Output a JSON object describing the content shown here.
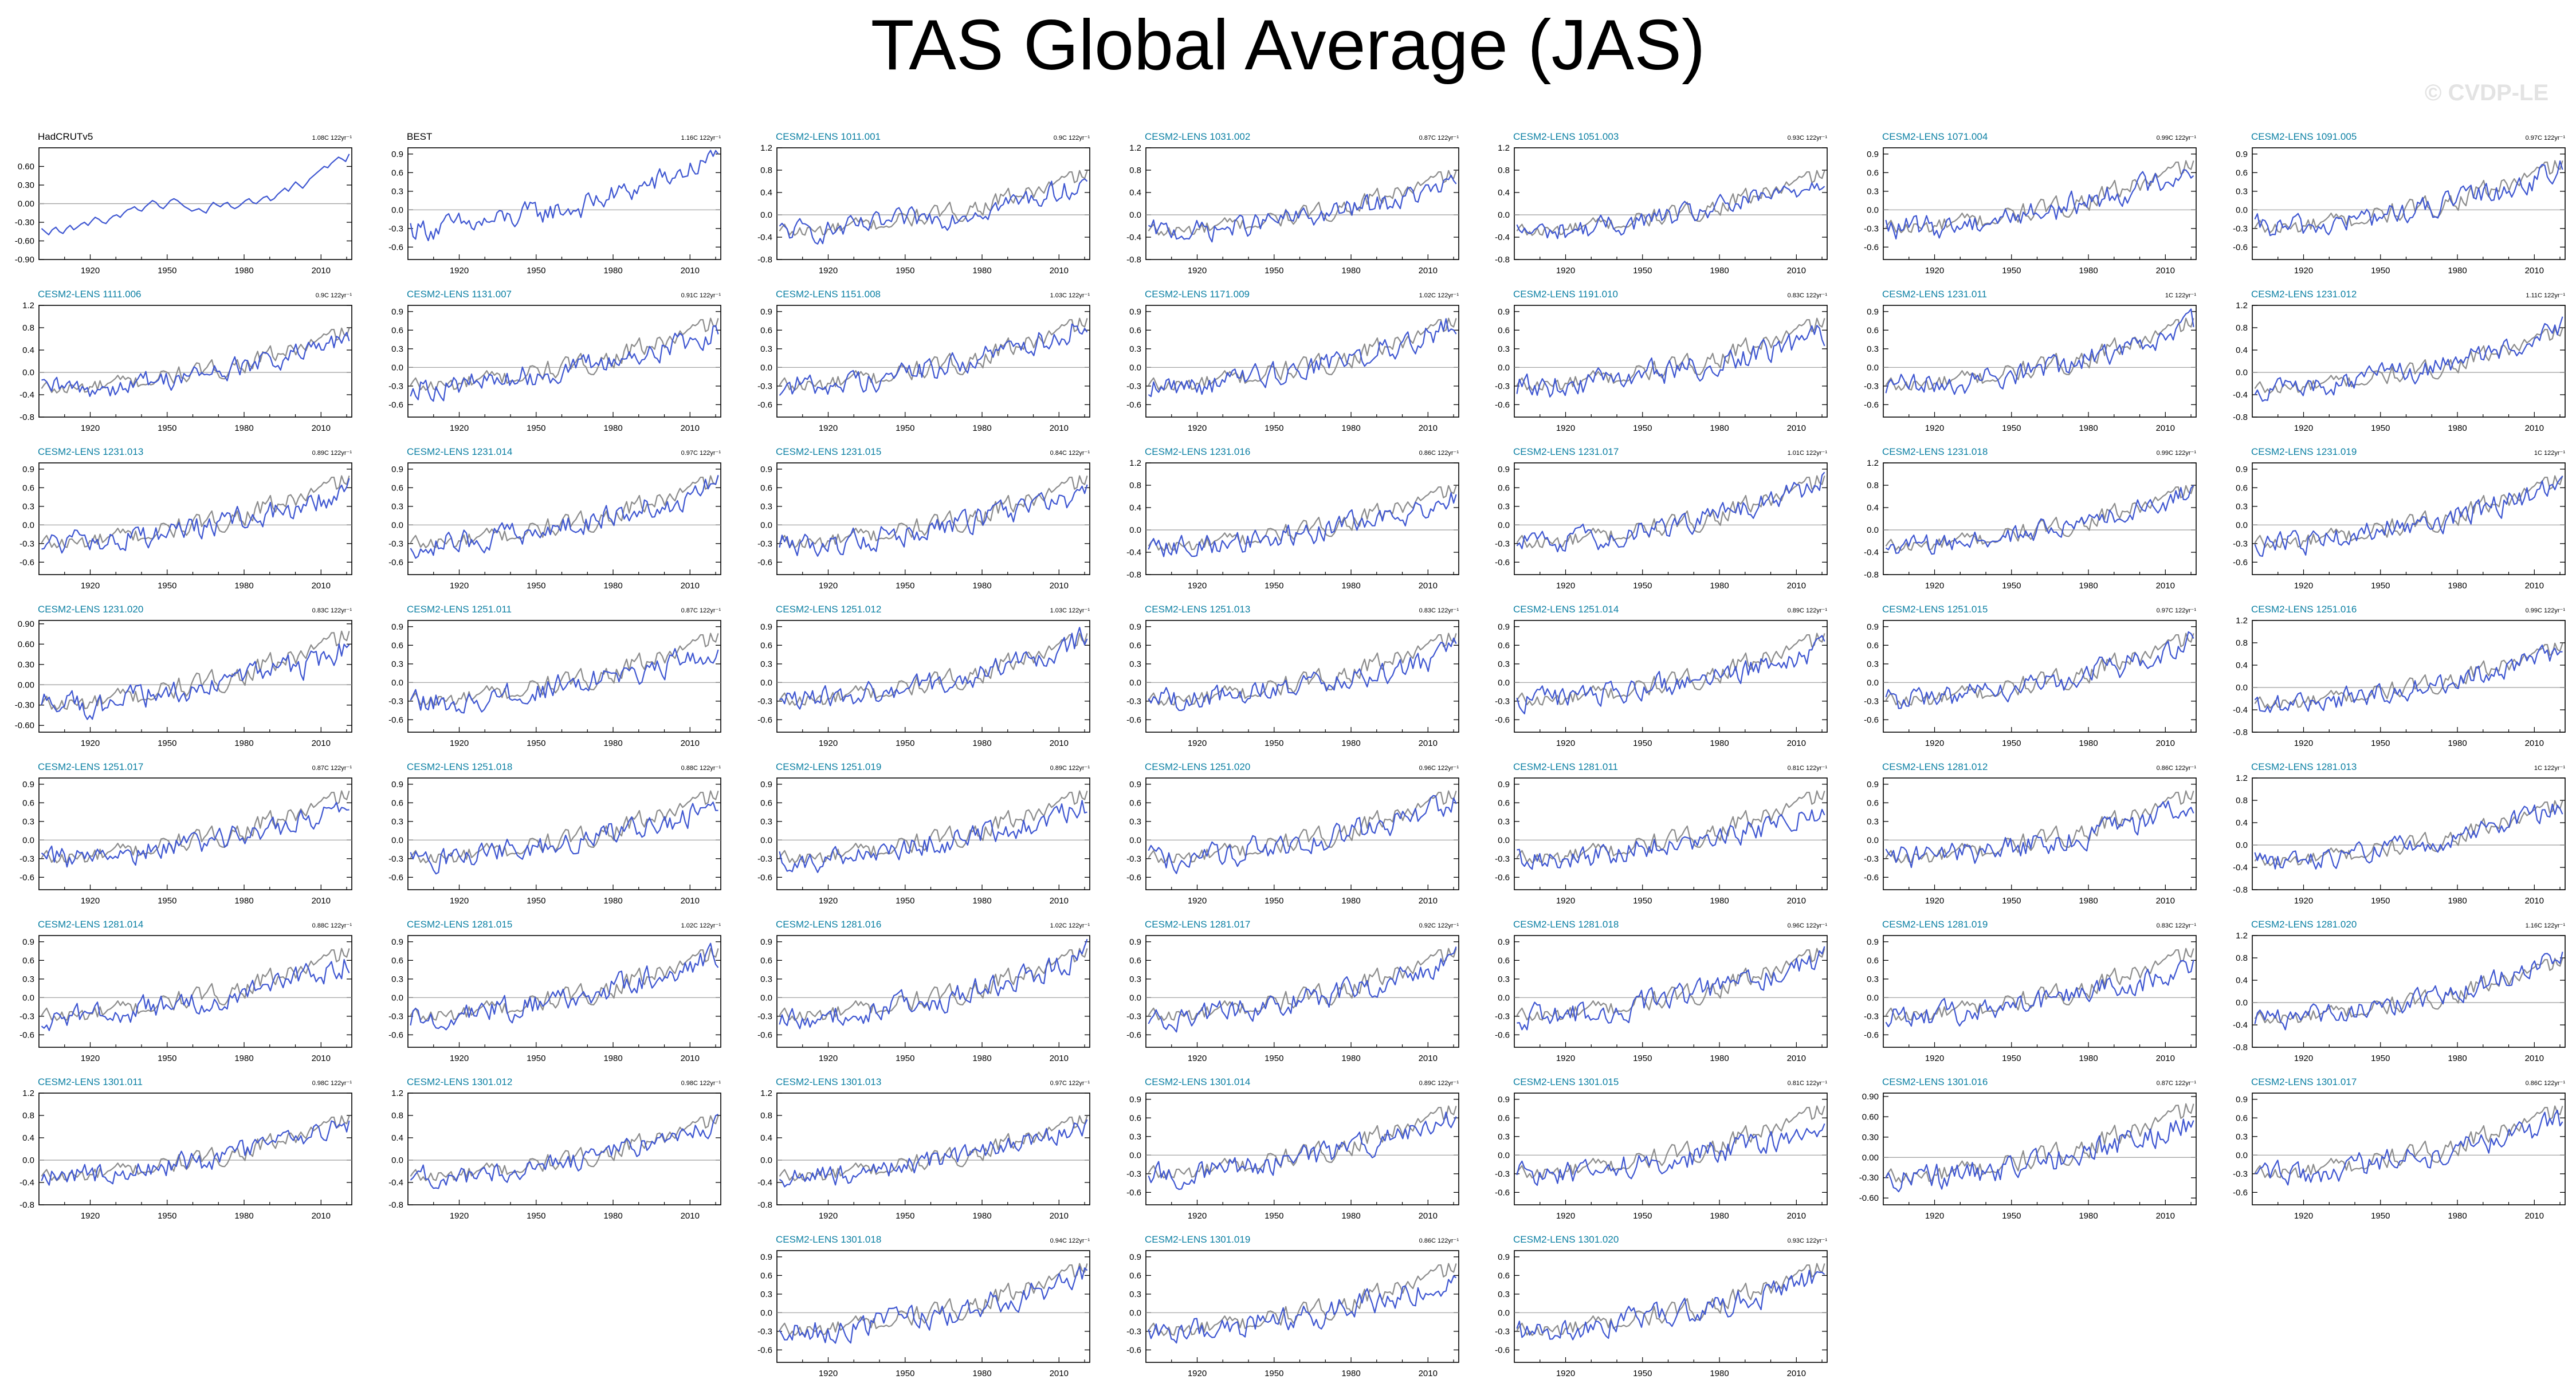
{
  "page": {
    "title": "TAS Global Average (JAS)",
    "watermark": "© CVDP-LE"
  },
  "colors": {
    "observed_line": "#8c8c8c",
    "model_line": "#3e56d1",
    "model_title": "#0a7fa3",
    "obs_title": "#000000",
    "zero_line": "#9c9c9c"
  },
  "x_ticks": [
    "1920",
    "1950",
    "1980",
    "2010"
  ],
  "x_range": [
    1900,
    2022
  ],
  "chart_data": [
    {
      "type": "line",
      "title": "HadCRUTv5",
      "trend": "1.08C 122yr⁻¹",
      "yticks": [
        "0.60",
        "0.30",
        "0.00",
        "-0.30",
        "-0.60",
        "-0.90"
      ],
      "ylim": [
        -0.9,
        0.9
      ],
      "series": [
        {
          "values": [
            -0.4,
            -0.45,
            -0.5,
            -0.42,
            -0.38,
            -0.45,
            -0.48,
            -0.4,
            -0.35,
            -0.42,
            -0.38,
            -0.33,
            -0.3,
            -0.35,
            -0.28,
            -0.22,
            -0.25,
            -0.3,
            -0.32,
            -0.25,
            -0.2,
            -0.18,
            -0.22,
            -0.15,
            -0.1,
            -0.08,
            -0.05,
            -0.1,
            -0.12,
            -0.05,
            0.0,
            0.05,
            0.02,
            -0.05,
            -0.08,
            -0.02,
            0.05,
            0.08,
            0.05,
            0.0,
            -0.05,
            -0.08,
            -0.12,
            -0.1,
            -0.08,
            -0.12,
            -0.15,
            -0.05,
            0.02,
            -0.02,
            -0.05,
            0.0,
            0.02,
            -0.05,
            -0.08,
            -0.05,
            0.0,
            0.05,
            0.08,
            0.02,
            0.0,
            0.05,
            0.1,
            0.12,
            0.05,
            0.08,
            0.15,
            0.2,
            0.25,
            0.2,
            0.28,
            0.35,
            0.3,
            0.25,
            0.32,
            0.4,
            0.45,
            0.5,
            0.55,
            0.6,
            0.58,
            0.65,
            0.7,
            0.75,
            0.72,
            0.68,
            0.8
          ]
        }
      ]
    },
    {
      "type": "line",
      "title": "BEST",
      "trend": "1.16C 122yr⁻¹",
      "yticks": [
        "0.9",
        "0.6",
        "0.3",
        "0.0",
        "-0.3",
        "-0.6"
      ],
      "ylim": [
        -0.8,
        1.0
      ]
    },
    {
      "type": "line",
      "title": "CESM2-LENS 1011.001",
      "trend": "0.9C 122yr⁻¹",
      "yticks": [
        "1.2",
        "0.8",
        "0.4",
        "0.0",
        "-0.4",
        "-0.8"
      ],
      "ylim": [
        -0.8,
        1.2
      ]
    },
    {
      "type": "line",
      "title": "CESM2-LENS 1031.002",
      "trend": "0.87C 122yr⁻¹",
      "yticks": [
        "1.2",
        "0.8",
        "0.4",
        "0.0",
        "-0.4",
        "-0.8"
      ],
      "ylim": [
        -0.8,
        1.2
      ]
    },
    {
      "type": "line",
      "title": "CESM2-LENS 1051.003",
      "trend": "0.93C 122yr⁻¹",
      "yticks": [
        "1.2",
        "0.8",
        "0.4",
        "0.0",
        "-0.4",
        "-0.8"
      ],
      "ylim": [
        -0.8,
        1.2
      ]
    },
    {
      "type": "line",
      "title": "CESM2-LENS 1071.004",
      "trend": "0.99C 122yr⁻¹",
      "yticks": [
        "0.9",
        "0.6",
        "0.3",
        "0.0",
        "-0.3",
        "-0.6"
      ],
      "ylim": [
        -0.8,
        1.0
      ]
    },
    {
      "type": "line",
      "title": "CESM2-LENS 1091.005",
      "trend": "0.97C 122yr⁻¹",
      "yticks": [
        "0.9",
        "0.6",
        "0.3",
        "0.0",
        "-0.3",
        "-0.6"
      ],
      "ylim": [
        -0.8,
        1.0
      ]
    },
    {
      "type": "line",
      "title": "CESM2-LENS 1111.006",
      "trend": "0.9C 122yr⁻¹",
      "yticks": [
        "1.2",
        "0.8",
        "0.4",
        "0.0",
        "-0.4",
        "-0.8"
      ],
      "ylim": [
        -0.8,
        1.2
      ]
    },
    {
      "type": "line",
      "title": "CESM2-LENS 1131.007",
      "trend": "0.91C 122yr⁻¹",
      "yticks": [
        "0.9",
        "0.6",
        "0.3",
        "0.0",
        "-0.3",
        "-0.6"
      ],
      "ylim": [
        -0.8,
        1.0
      ]
    },
    {
      "type": "line",
      "title": "CESM2-LENS 1151.008",
      "trend": "1.03C 122yr⁻¹",
      "yticks": [
        "0.9",
        "0.6",
        "0.3",
        "0.0",
        "-0.3",
        "-0.6"
      ],
      "ylim": [
        -0.8,
        1.0
      ]
    },
    {
      "type": "line",
      "title": "CESM2-LENS 1171.009",
      "trend": "1.02C 122yr⁻¹",
      "yticks": [
        "0.9",
        "0.6",
        "0.3",
        "0.0",
        "-0.3",
        "-0.6"
      ],
      "ylim": [
        -0.8,
        1.0
      ]
    },
    {
      "type": "line",
      "title": "CESM2-LENS 1191.010",
      "trend": "0.83C 122yr⁻¹",
      "yticks": [
        "0.9",
        "0.6",
        "0.3",
        "0.0",
        "-0.3",
        "-0.6"
      ],
      "ylim": [
        -0.8,
        1.0
      ]
    },
    {
      "type": "line",
      "title": "CESM2-LENS 1231.011",
      "trend": "1C 122yr⁻¹",
      "yticks": [
        "0.9",
        "0.6",
        "0.3",
        "0.0",
        "-0.3",
        "-0.6"
      ],
      "ylim": [
        -0.8,
        1.0
      ]
    },
    {
      "type": "line",
      "title": "CESM2-LENS 1231.012",
      "trend": "1.11C 122yr⁻¹",
      "yticks": [
        "1.2",
        "0.8",
        "0.4",
        "0.0",
        "-0.4",
        "-0.8"
      ],
      "ylim": [
        -0.8,
        1.2
      ]
    },
    {
      "type": "line",
      "title": "CESM2-LENS 1231.013",
      "trend": "0.89C 122yr⁻¹",
      "yticks": [
        "0.9",
        "0.6",
        "0.3",
        "0.0",
        "-0.3",
        "-0.6"
      ],
      "ylim": [
        -0.8,
        1.0
      ]
    },
    {
      "type": "line",
      "title": "CESM2-LENS 1231.014",
      "trend": "0.97C 122yr⁻¹",
      "yticks": [
        "0.9",
        "0.6",
        "0.3",
        "0.0",
        "-0.3",
        "-0.6"
      ],
      "ylim": [
        -0.8,
        1.0
      ]
    },
    {
      "type": "line",
      "title": "CESM2-LENS 1231.015",
      "trend": "0.84C 122yr⁻¹",
      "yticks": [
        "0.9",
        "0.6",
        "0.3",
        "0.0",
        "-0.3",
        "-0.6"
      ],
      "ylim": [
        -0.8,
        1.0
      ]
    },
    {
      "type": "line",
      "title": "CESM2-LENS 1231.016",
      "trend": "0.86C 122yr⁻¹",
      "yticks": [
        "1.2",
        "0.8",
        "0.4",
        "0.0",
        "-0.4",
        "-0.8"
      ],
      "ylim": [
        -0.8,
        1.2
      ]
    },
    {
      "type": "line",
      "title": "CESM2-LENS 1231.017",
      "trend": "1.01C 122yr⁻¹",
      "yticks": [
        "0.9",
        "0.6",
        "0.3",
        "0.0",
        "-0.3",
        "-0.6"
      ],
      "ylim": [
        -0.8,
        1.0
      ]
    },
    {
      "type": "line",
      "title": "CESM2-LENS 1231.018",
      "trend": "0.99C 122yr⁻¹",
      "yticks": [
        "1.2",
        "0.8",
        "0.4",
        "0.0",
        "-0.4",
        "-0.8"
      ],
      "ylim": [
        -0.8,
        1.2
      ]
    },
    {
      "type": "line",
      "title": "CESM2-LENS 1231.019",
      "trend": "1C 122yr⁻¹",
      "yticks": [
        "0.9",
        "0.6",
        "0.3",
        "0.0",
        "-0.3",
        "-0.6"
      ],
      "ylim": [
        -0.8,
        1.0
      ]
    },
    {
      "type": "line",
      "title": "CESM2-LENS 1231.020",
      "trend": "0.83C 122yr⁻¹",
      "yticks": [
        "0.90",
        "0.60",
        "0.30",
        "0.00",
        "-0.30",
        "-0.60"
      ],
      "ylim": [
        -0.7,
        0.95
      ]
    },
    {
      "type": "line",
      "title": "CESM2-LENS 1251.011",
      "trend": "0.87C 122yr⁻¹",
      "yticks": [
        "0.9",
        "0.6",
        "0.3",
        "0.0",
        "-0.3",
        "-0.6"
      ],
      "ylim": [
        -0.8,
        1.0
      ]
    },
    {
      "type": "line",
      "title": "CESM2-LENS 1251.012",
      "trend": "1.03C 122yr⁻¹",
      "yticks": [
        "0.9",
        "0.6",
        "0.3",
        "0.0",
        "-0.3",
        "-0.6"
      ],
      "ylim": [
        -0.8,
        1.0
      ]
    },
    {
      "type": "line",
      "title": "CESM2-LENS 1251.013",
      "trend": "0.83C 122yr⁻¹",
      "yticks": [
        "0.9",
        "0.6",
        "0.3",
        "0.0",
        "-0.3",
        "-0.6"
      ],
      "ylim": [
        -0.8,
        1.0
      ]
    },
    {
      "type": "line",
      "title": "CESM2-LENS 1251.014",
      "trend": "0.89C 122yr⁻¹",
      "yticks": [
        "0.9",
        "0.6",
        "0.3",
        "0.0",
        "-0.3",
        "-0.6"
      ],
      "ylim": [
        -0.8,
        1.0
      ]
    },
    {
      "type": "line",
      "title": "CESM2-LENS 1251.015",
      "trend": "0.97C 122yr⁻¹",
      "yticks": [
        "0.9",
        "0.6",
        "0.3",
        "0.0",
        "-0.3",
        "-0.6"
      ],
      "ylim": [
        -0.8,
        1.0
      ]
    },
    {
      "type": "line",
      "title": "CESM2-LENS 1251.016",
      "trend": "0.99C 122yr⁻¹",
      "yticks": [
        "1.2",
        "0.8",
        "0.4",
        "0.0",
        "-0.4",
        "-0.8"
      ],
      "ylim": [
        -0.8,
        1.2
      ]
    },
    {
      "type": "line",
      "title": "CESM2-LENS 1251.017",
      "trend": "0.87C 122yr⁻¹",
      "yticks": [
        "0.9",
        "0.6",
        "0.3",
        "0.0",
        "-0.3",
        "-0.6"
      ],
      "ylim": [
        -0.8,
        1.0
      ]
    },
    {
      "type": "line",
      "title": "CESM2-LENS 1251.018",
      "trend": "0.88C 122yr⁻¹",
      "yticks": [
        "0.9",
        "0.6",
        "0.3",
        "0.0",
        "-0.3",
        "-0.6"
      ],
      "ylim": [
        -0.8,
        1.0
      ]
    },
    {
      "type": "line",
      "title": "CESM2-LENS 1251.019",
      "trend": "0.89C 122yr⁻¹",
      "yticks": [
        "0.9",
        "0.6",
        "0.3",
        "0.0",
        "-0.3",
        "-0.6"
      ],
      "ylim": [
        -0.8,
        1.0
      ]
    },
    {
      "type": "line",
      "title": "CESM2-LENS 1251.020",
      "trend": "0.96C 122yr⁻¹",
      "yticks": [
        "0.9",
        "0.6",
        "0.3",
        "0.0",
        "-0.3",
        "-0.6"
      ],
      "ylim": [
        -0.8,
        1.0
      ]
    },
    {
      "type": "line",
      "title": "CESM2-LENS 1281.011",
      "trend": "0.81C 122yr⁻¹",
      "yticks": [
        "0.9",
        "0.6",
        "0.3",
        "0.0",
        "-0.3",
        "-0.6"
      ],
      "ylim": [
        -0.8,
        1.0
      ]
    },
    {
      "type": "line",
      "title": "CESM2-LENS 1281.012",
      "trend": "0.86C 122yr⁻¹",
      "yticks": [
        "0.9",
        "0.6",
        "0.3",
        "0.0",
        "-0.3",
        "-0.6"
      ],
      "ylim": [
        -0.8,
        1.0
      ]
    },
    {
      "type": "line",
      "title": "CESM2-LENS 1281.013",
      "trend": "1C 122yr⁻¹",
      "yticks": [
        "1.2",
        "0.8",
        "0.4",
        "0.0",
        "-0.4",
        "-0.8"
      ],
      "ylim": [
        -0.8,
        1.2
      ]
    },
    {
      "type": "line",
      "title": "CESM2-LENS 1281.014",
      "trend": "0.88C 122yr⁻¹",
      "yticks": [
        "0.9",
        "0.6",
        "0.3",
        "0.0",
        "-0.3",
        "-0.6"
      ],
      "ylim": [
        -0.8,
        1.0
      ]
    },
    {
      "type": "line",
      "title": "CESM2-LENS 1281.015",
      "trend": "1.02C 122yr⁻¹",
      "yticks": [
        "0.9",
        "0.6",
        "0.3",
        "0.0",
        "-0.3",
        "-0.6"
      ],
      "ylim": [
        -0.8,
        1.0
      ]
    },
    {
      "type": "line",
      "title": "CESM2-LENS 1281.016",
      "trend": "1.02C 122yr⁻¹",
      "yticks": [
        "0.9",
        "0.6",
        "0.3",
        "0.0",
        "-0.3",
        "-0.6"
      ],
      "ylim": [
        -0.8,
        1.0
      ]
    },
    {
      "type": "line",
      "title": "CESM2-LENS 1281.017",
      "trend": "0.92C 122yr⁻¹",
      "yticks": [
        "0.9",
        "0.6",
        "0.3",
        "0.0",
        "-0.3",
        "-0.6"
      ],
      "ylim": [
        -0.8,
        1.0
      ]
    },
    {
      "type": "line",
      "title": "CESM2-LENS 1281.018",
      "trend": "0.96C 122yr⁻¹",
      "yticks": [
        "0.9",
        "0.6",
        "0.3",
        "0.0",
        "-0.3",
        "-0.6"
      ],
      "ylim": [
        -0.8,
        1.0
      ]
    },
    {
      "type": "line",
      "title": "CESM2-LENS 1281.019",
      "trend": "0.83C 122yr⁻¹",
      "yticks": [
        "0.9",
        "0.6",
        "0.3",
        "0.0",
        "-0.3",
        "-0.6"
      ],
      "ylim": [
        -0.8,
        1.0
      ]
    },
    {
      "type": "line",
      "title": "CESM2-LENS 1281.020",
      "trend": "1.16C 122yr⁻¹",
      "yticks": [
        "1.2",
        "0.8",
        "0.4",
        "0.0",
        "-0.4",
        "-0.8"
      ],
      "ylim": [
        -0.8,
        1.2
      ]
    },
    {
      "type": "line",
      "title": "CESM2-LENS 1301.011",
      "trend": "0.98C 122yr⁻¹",
      "yticks": [
        "1.2",
        "0.8",
        "0.4",
        "0.0",
        "-0.4",
        "-0.8"
      ],
      "ylim": [
        -0.8,
        1.2
      ]
    },
    {
      "type": "line",
      "title": "CESM2-LENS 1301.012",
      "trend": "0.98C 122yr⁻¹",
      "yticks": [
        "1.2",
        "0.8",
        "0.4",
        "0.0",
        "-0.4",
        "-0.8"
      ],
      "ylim": [
        -0.8,
        1.2
      ]
    },
    {
      "type": "line",
      "title": "CESM2-LENS 1301.013",
      "trend": "0.97C 122yr⁻¹",
      "yticks": [
        "1.2",
        "0.8",
        "0.4",
        "0.0",
        "-0.4",
        "-0.8"
      ],
      "ylim": [
        -0.8,
        1.2
      ]
    },
    {
      "type": "line",
      "title": "CESM2-LENS 1301.014",
      "trend": "0.89C 122yr⁻¹",
      "yticks": [
        "0.9",
        "0.6",
        "0.3",
        "0.0",
        "-0.3",
        "-0.6"
      ],
      "ylim": [
        -0.8,
        1.0
      ]
    },
    {
      "type": "line",
      "title": "CESM2-LENS 1301.015",
      "trend": "0.81C 122yr⁻¹",
      "yticks": [
        "0.9",
        "0.6",
        "0.3",
        "0.0",
        "-0.3",
        "-0.6"
      ],
      "ylim": [
        -0.8,
        1.0
      ]
    },
    {
      "type": "line",
      "title": "CESM2-LENS 1301.016",
      "trend": "0.87C 122yr⁻¹",
      "yticks": [
        "0.90",
        "0.60",
        "0.30",
        "0.00",
        "-0.30",
        "-0.60"
      ],
      "ylim": [
        -0.7,
        0.95
      ]
    },
    {
      "type": "line",
      "title": "CESM2-LENS 1301.017",
      "trend": "0.86C 122yr⁻¹",
      "yticks": [
        "0.9",
        "0.6",
        "0.3",
        "0.0",
        "-0.3",
        "-0.6"
      ],
      "ylim": [
        -0.8,
        1.0
      ]
    },
    {
      "type": "line",
      "title": "CESM2-LENS 1301.018",
      "trend": "0.94C 122yr⁻¹",
      "yticks": [
        "0.9",
        "0.6",
        "0.3",
        "0.0",
        "-0.3",
        "-0.6"
      ],
      "ylim": [
        -0.8,
        1.0
      ]
    },
    {
      "type": "line",
      "title": "CESM2-LENS 1301.019",
      "trend": "0.86C 122yr⁻¹",
      "yticks": [
        "0.9",
        "0.6",
        "0.3",
        "0.0",
        "-0.3",
        "-0.6"
      ],
      "ylim": [
        -0.8,
        1.0
      ]
    },
    {
      "type": "line",
      "title": "CESM2-LENS 1301.020",
      "trend": "0.93C 122yr⁻¹",
      "yticks": [
        "0.9",
        "0.6",
        "0.3",
        "0.0",
        "-0.3",
        "-0.6"
      ],
      "ylim": [
        -0.8,
        1.0
      ]
    }
  ]
}
